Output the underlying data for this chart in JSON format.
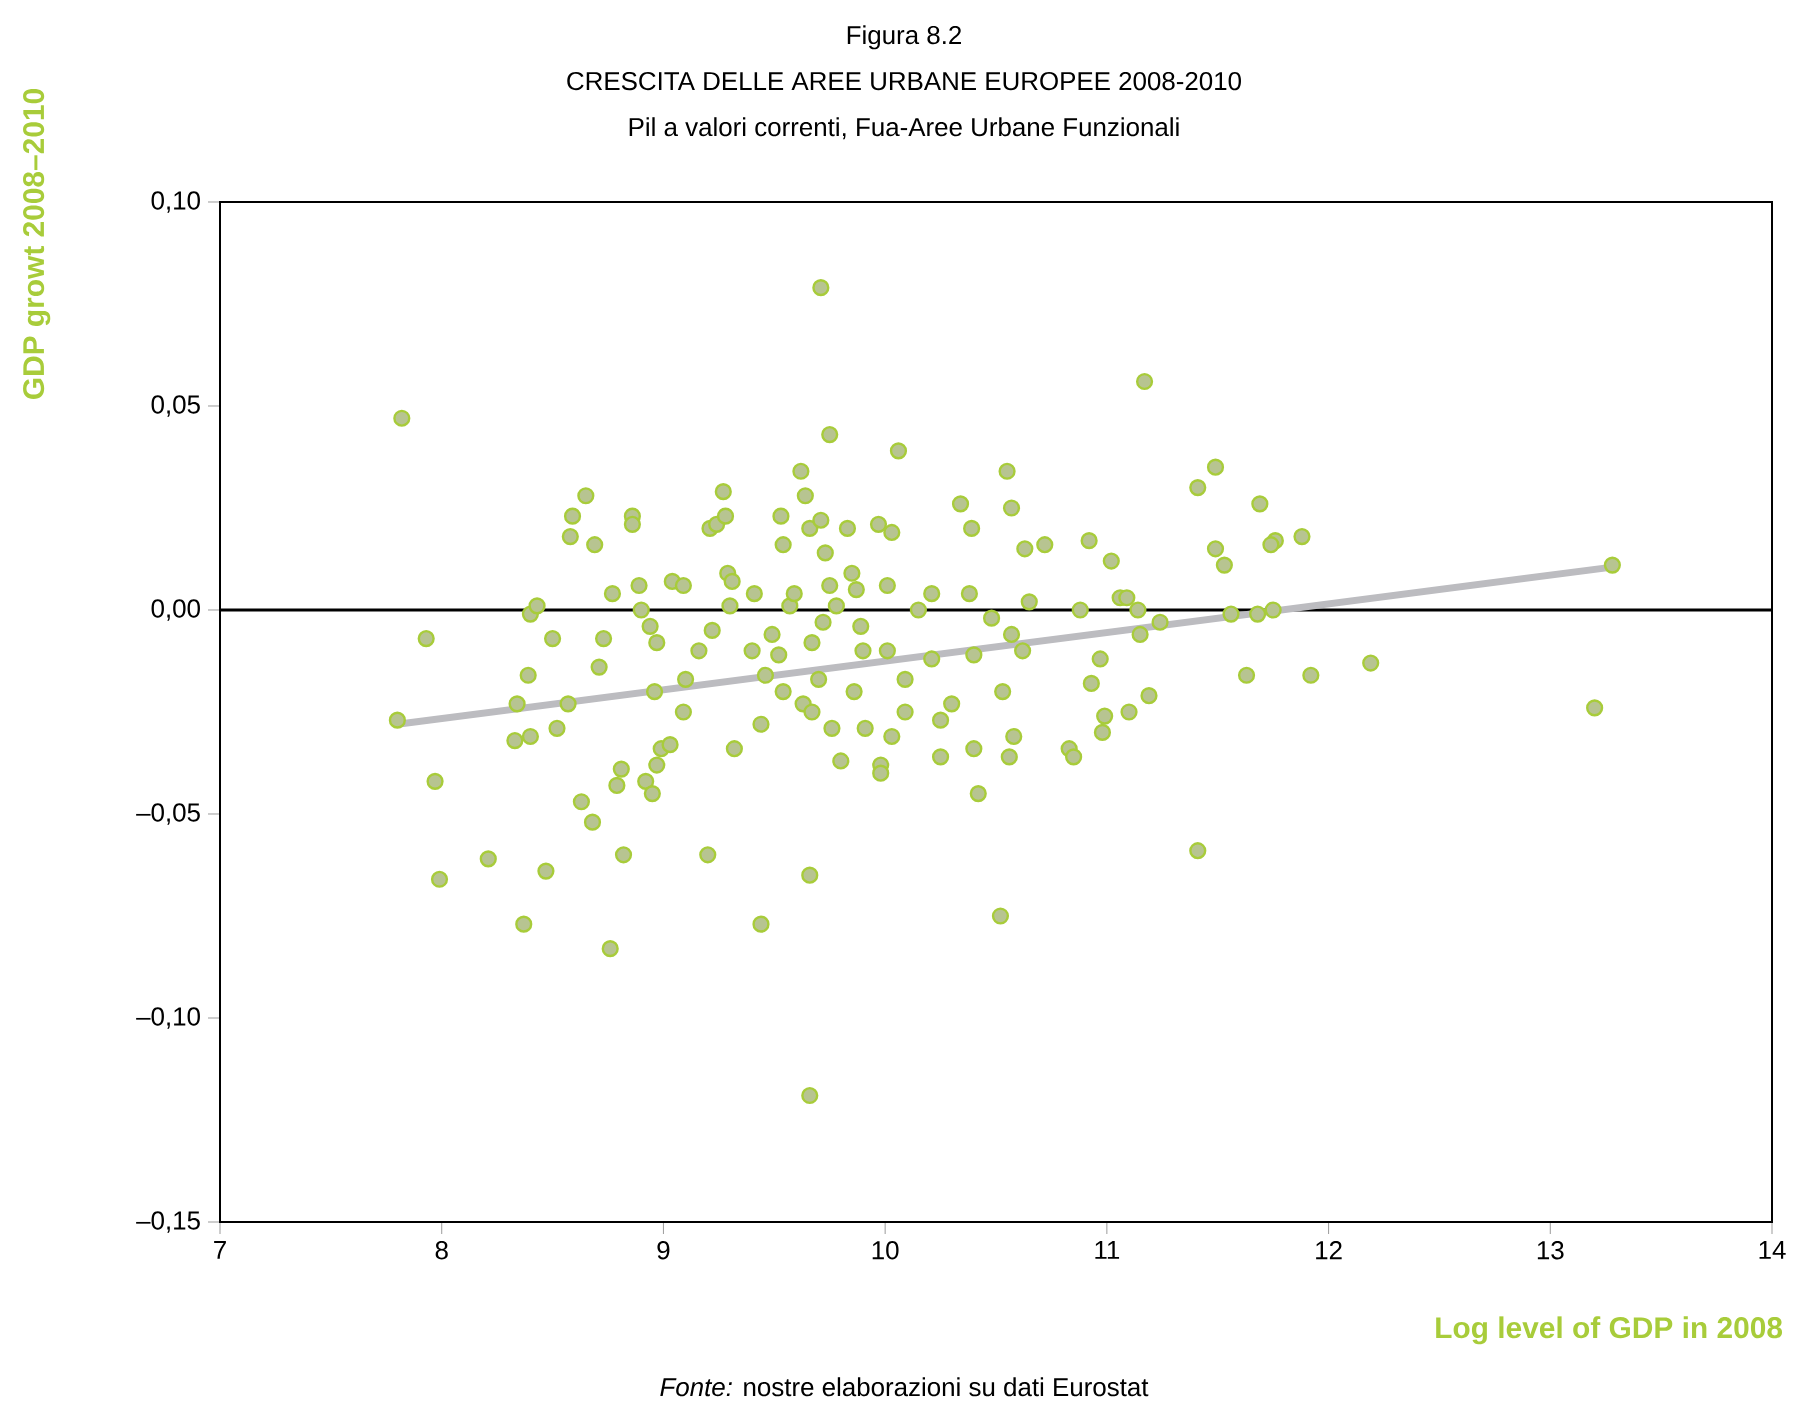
{
  "chart_data": {
    "type": "scatter",
    "title": "CRESCITA DELLE AREE URBANE EUROPEE 2008-2010",
    "subtitle": "Pil a valori correnti, Fua-Aree Urbane Funzionali",
    "annotations": [
      "Figura 8.2",
      "*Fonte:* nostre elaborazioni su dati Eurostat"
    ],
    "xlabel": "Log level of GDP in 2008",
    "ylabel": "GDP growt 2008–2010",
    "xlim": [
      7,
      14
    ],
    "xticks": [
      7,
      8,
      9,
      10,
      11,
      12,
      13,
      14
    ],
    "ylim": [
      -0.15,
      0.1
    ],
    "yticks": [
      {
        "value": -0.15,
        "label": "–0,15"
      },
      {
        "value": -0.1,
        "label": "–0,10"
      },
      {
        "value": -0.05,
        "label": "–0,05"
      },
      {
        "value": 0,
        "label": "0,00"
      },
      {
        "value": 0.05,
        "label": "0,05"
      },
      {
        "value": 0.1,
        "label": "0,10"
      }
    ],
    "grid": false,
    "marker": "circle",
    "ref_lines": [
      {
        "axis": "y",
        "value": 0,
        "color": "#000000"
      }
    ],
    "series": [
      {
        "color": "#a8cc3a",
        "x": [
          7.82,
          7.8,
          7.93,
          7.97,
          7.99,
          8.21,
          8.37,
          8.47,
          8.33,
          8.4,
          8.34,
          8.39,
          8.4,
          8.43,
          8.5,
          8.58,
          8.59,
          8.65,
          8.69,
          8.57,
          8.52,
          8.63,
          8.68,
          8.76,
          8.82,
          8.86,
          8.86,
          8.77,
          8.71,
          8.73,
          8.81,
          8.79,
          8.92,
          8.95,
          8.97,
          8.99,
          9.03,
          8.89,
          8.9,
          8.94,
          8.97,
          8.96,
          9.04,
          9.09,
          9.1,
          9.09,
          9.16,
          9.2,
          9.21,
          9.24,
          9.27,
          9.28,
          9.22,
          9.29,
          9.31,
          9.3,
          9.32,
          9.41,
          9.4,
          9.44,
          9.44,
          9.46,
          9.49,
          9.52,
          9.54,
          9.53,
          9.54,
          9.57,
          9.59,
          9.62,
          9.64,
          9.63,
          9.66,
          9.66,
          9.71,
          9.75,
          9.66,
          9.71,
          9.73,
          9.75,
          9.78,
          9.72,
          9.67,
          9.7,
          9.67,
          9.76,
          9.8,
          9.83,
          9.85,
          9.87,
          9.89,
          9.9,
          9.86,
          9.91,
          9.97,
          10.01,
          10.01,
          10.03,
          9.98,
          9.98,
          10.06,
          10.09,
          10.09,
          10.03,
          10.15,
          10.21,
          10.21,
          10.25,
          10.25,
          10.3,
          10.34,
          10.39,
          10.38,
          10.4,
          10.42,
          10.4,
          10.48,
          10.52,
          10.53,
          10.55,
          10.57,
          10.57,
          10.56,
          10.58,
          10.63,
          10.65,
          10.62,
          10.72,
          10.83,
          10.85,
          10.88,
          10.92,
          10.93,
          10.97,
          10.98,
          10.99,
          11.02,
          11.06,
          11.09,
          11.1,
          11.14,
          11.15,
          11.17,
          11.19,
          11.24,
          11.41,
          11.49,
          11.41,
          11.49,
          11.53,
          11.56,
          11.63,
          11.69,
          11.68,
          11.76,
          11.74,
          11.75,
          11.88,
          11.92,
          12.19,
          13.2,
          13.28
        ],
        "values": [
          0.047,
          -0.027,
          -0.007,
          -0.042,
          -0.066,
          -0.061,
          -0.077,
          -0.064,
          -0.032,
          -0.031,
          -0.023,
          -0.016,
          -0.001,
          0.001,
          -0.007,
          0.018,
          0.023,
          0.028,
          0.016,
          -0.023,
          -0.029,
          -0.047,
          -0.052,
          -0.083,
          -0.06,
          0.023,
          0.021,
          0.004,
          -0.014,
          -0.007,
          -0.039,
          -0.043,
          -0.042,
          -0.045,
          -0.038,
          -0.034,
          -0.033,
          0.006,
          0.0,
          -0.004,
          -0.008,
          -0.02,
          0.007,
          0.006,
          -0.017,
          -0.025,
          -0.01,
          -0.06,
          0.02,
          0.021,
          0.029,
          0.023,
          -0.005,
          0.009,
          0.007,
          0.001,
          -0.034,
          0.004,
          -0.01,
          -0.077,
          -0.028,
          -0.016,
          -0.006,
          -0.011,
          -0.02,
          0.023,
          0.016,
          0.001,
          0.004,
          0.034,
          0.028,
          -0.023,
          -0.065,
          -0.119,
          0.079,
          0.043,
          0.02,
          0.022,
          0.014,
          0.006,
          0.001,
          -0.003,
          -0.008,
          -0.017,
          -0.025,
          -0.029,
          -0.037,
          0.02,
          0.009,
          0.005,
          -0.004,
          -0.01,
          -0.02,
          -0.029,
          0.021,
          0.006,
          -0.01,
          0.019,
          -0.038,
          -0.04,
          0.039,
          -0.025,
          -0.017,
          -0.031,
          0.0,
          0.004,
          -0.012,
          -0.027,
          -0.036,
          -0.023,
          0.026,
          0.02,
          0.004,
          -0.034,
          -0.045,
          -0.011,
          -0.002,
          -0.075,
          -0.02,
          0.034,
          0.025,
          -0.006,
          -0.036,
          -0.031,
          0.015,
          0.002,
          -0.01,
          0.016,
          -0.034,
          -0.036,
          0.0,
          0.017,
          -0.018,
          -0.012,
          -0.03,
          -0.026,
          0.012,
          0.003,
          0.003,
          -0.025,
          0.0,
          -0.006,
          0.056,
          -0.021,
          -0.003,
          0.03,
          0.035,
          -0.059,
          0.015,
          0.011,
          -0.001,
          -0.016,
          0.026,
          -0.001,
          0.017,
          0.016,
          0.0,
          0.018,
          -0.016,
          -0.013,
          -0.024,
          0.011
        ]
      },
      {
        "type": "line",
        "color": "#bcbcc0",
        "marker": "none",
        "x": [
          7.8,
          13.28
        ],
        "values": [
          -0.028,
          0.0105
        ]
      }
    ]
  }
}
